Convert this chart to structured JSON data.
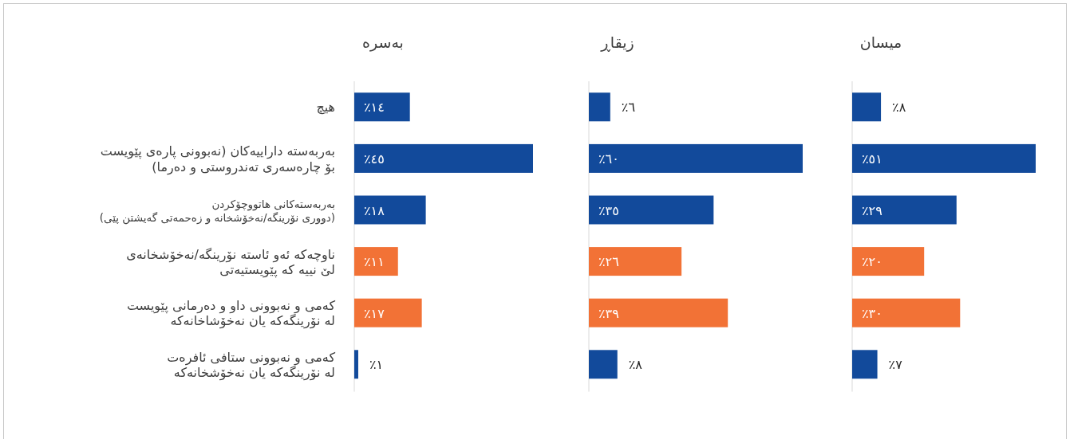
{
  "chart_data": [
    {
      "type": "bar",
      "orientation": "horizontal",
      "title": "بەسرە",
      "tick_labels": "y",
      "categories": [
        "هیچ",
        "بەربەستە داراییەکان (نەبوونی پارەی پێویست\nبۆ چارەسەری تەندروستی و دەرما)",
        "بەربەستەکانی هاتووچۆکردن\n(دووری نۆرینگە/نەخۆشخانە  و زەحمەتی گەیشتن پێی)",
        "ناوچەکە ئەو ئاستە نۆرینگە/نەخۆشخانەی\nلێ نییە کە پێویستیەتی",
        "کەمی و نەبوونی داو و دەرمانی  پێویست\nلە نۆرینگەکە یان نەخۆشاخانەکە",
        "کەمی و نەبوونی ستافی ئافرەت\nلە نۆرینگەکە یان نەخۆشخانەکە"
      ],
      "values": [
        14,
        45,
        18,
        11,
        17,
        1
      ],
      "colors": [
        "#124a9b",
        "#124a9b",
        "#124a9b",
        "#f27236",
        "#f27236",
        "#124a9b"
      ],
      "value_labels": [
        "٪١٤",
        "٪٤٥",
        "٪١٨",
        "٪١١",
        "٪١٧",
        "٪١"
      ]
    },
    {
      "type": "bar",
      "orientation": "horizontal",
      "title": "زیقاڕ",
      "tick_labels": false,
      "categories": [
        null,
        null,
        null,
        null,
        null,
        null
      ],
      "values": [
        6,
        60,
        35,
        26,
        39,
        8
      ],
      "colors": [
        "#124a9b",
        "#124a9b",
        "#124a9b",
        "#f27236",
        "#f27236",
        "#124a9b"
      ],
      "value_labels": [
        "٪٦",
        "٪٦٠",
        "٪٣٥",
        "٪٢٦",
        "٪٣٩",
        "٪٨"
      ]
    },
    {
      "type": "bar",
      "orientation": "horizontal",
      "title": "میسان",
      "tick_labels": false,
      "categories": [
        null,
        null,
        null,
        null,
        null,
        null
      ],
      "values": [
        8,
        51,
        29,
        20,
        30,
        7
      ],
      "colors": [
        "#124a9b",
        "#124a9b",
        "#124a9b",
        "#f27236",
        "#f27236",
        "#124a9b"
      ],
      "value_labels": [
        "٪٨",
        "٪٥١",
        "٪٢٩",
        "٪٢٠",
        "٪٣٠",
        "٪٧"
      ]
    }
  ]
}
